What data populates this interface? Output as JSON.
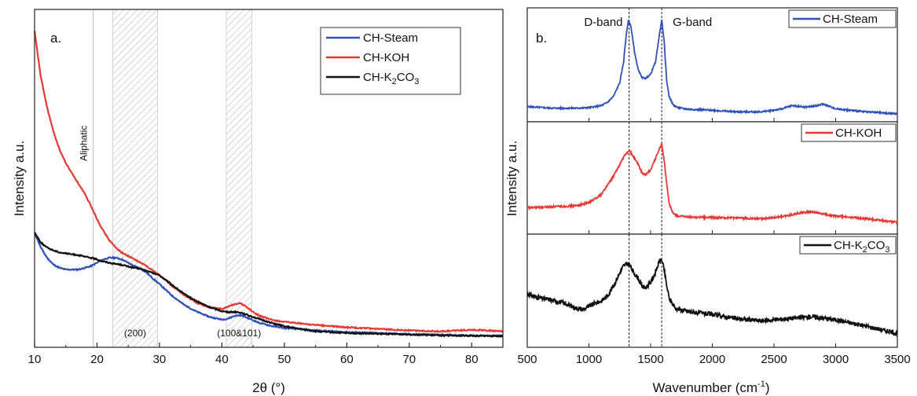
{
  "chart_data": [
    {
      "type": "line",
      "panel_label": "a.",
      "xlabel": "2θ (°)",
      "ylabel": "Intensity a.u.",
      "xlim": [
        10,
        85
      ],
      "x_ticks": [
        "10",
        "20",
        "30",
        "40",
        "50",
        "60",
        "70",
        "80"
      ],
      "x_tick_values": [
        10,
        20,
        30,
        40,
        50,
        60,
        70,
        80
      ],
      "ylim": [
        0,
        100
      ],
      "legend_position": "top-right",
      "annotations": [
        {
          "text": "Aliphatic",
          "x": 19.4,
          "kind": "line"
        },
        {
          "text": "(200)",
          "x_range": [
            22.5,
            29.7
          ],
          "kind": "hatched"
        },
        {
          "text": "(100&101)",
          "x_range": [
            40.7,
            44.8
          ],
          "kind": "hatched"
        }
      ],
      "series": [
        {
          "name": "CH-Steam",
          "color": "#3050b8",
          "x": [
            10,
            11,
            12,
            13,
            14,
            15,
            16,
            17,
            18,
            19,
            20,
            21,
            22,
            23,
            24,
            25,
            26,
            27,
            28,
            29,
            30,
            32,
            34,
            36,
            38,
            40,
            41,
            42,
            43,
            44,
            45,
            46,
            48,
            50,
            55,
            60,
            65,
            70,
            75,
            80,
            85
          ],
          "y": [
            34,
            29.5,
            26.5,
            24.5,
            23.5,
            23,
            23,
            23,
            23.5,
            24,
            25,
            26,
            26.5,
            26.5,
            26,
            25,
            24,
            23.3,
            22,
            20.3,
            18.7,
            15.3,
            12.5,
            10.5,
            9,
            8.2,
            8.5,
            9.3,
            9.5,
            8.8,
            8,
            7.2,
            6.3,
            5.7,
            5,
            4.5,
            4.2,
            3.9,
            3.7,
            3.5,
            3.4
          ]
        },
        {
          "name": "CH-KOH",
          "color": "#e53935",
          "x": [
            10,
            11,
            12,
            13,
            14,
            15,
            16,
            17,
            18,
            19,
            20,
            21,
            22,
            23,
            24,
            25,
            26,
            27,
            28,
            29,
            30,
            32,
            34,
            36,
            38,
            40,
            41,
            42,
            43,
            44,
            45,
            46,
            48,
            50,
            55,
            60,
            65,
            70,
            75,
            80,
            85
          ],
          "y": [
            93.5,
            80,
            71,
            64,
            58.5,
            54.5,
            51.5,
            48.5,
            45.5,
            42,
            38,
            34.5,
            31.6,
            29.5,
            28,
            27,
            26,
            25,
            24,
            22.6,
            21.4,
            18.2,
            15.4,
            13.1,
            11.8,
            11.3,
            12,
            12.8,
            13,
            11.9,
            10.4,
            9.3,
            8.1,
            7.5,
            6.6,
            5.9,
            5.4,
            5,
            4.7,
            5.2,
            4.7
          ]
        },
        {
          "name": "CH-K₂CO₃",
          "sub": "CH-K2CO3",
          "color": "#111111",
          "x": [
            10,
            11,
            12,
            13,
            14,
            15,
            16,
            17,
            18,
            19,
            20,
            21,
            22,
            23,
            24,
            25,
            26,
            27,
            28,
            29,
            30,
            32,
            34,
            36,
            38,
            40,
            41,
            42,
            43,
            44,
            45,
            46,
            48,
            50,
            55,
            60,
            65,
            70,
            75,
            80,
            85
          ],
          "y": [
            34,
            31,
            29.5,
            28.7,
            28.1,
            27.8,
            27.5,
            27.3,
            26.8,
            26.5,
            26,
            25.4,
            25,
            24.7,
            24.4,
            23.9,
            23.5,
            23.2,
            22.6,
            21.9,
            21.3,
            18.5,
            15.7,
            13.6,
            11.9,
            10.7,
            10.4,
            10.5,
            10.3,
            9.6,
            9,
            8.3,
            7.2,
            6.2,
            4.7,
            4.2,
            4,
            3.8,
            3.5,
            3.4,
            3.3
          ]
        }
      ]
    },
    {
      "type": "line",
      "panel_label": "b.",
      "xlabel": "Wavenumber (cm⁻¹)",
      "ylabel": "Intensity a.u.",
      "xlim": [
        500,
        3500
      ],
      "x_ticks": [
        "500",
        "1000",
        "1500",
        "2000",
        "2500",
        "3000",
        "3500"
      ],
      "x_tick_values": [
        500,
        1000,
        1500,
        2000,
        2500,
        3000,
        3500
      ],
      "band_labels": [
        {
          "text": "D-band",
          "x": 1325
        },
        {
          "text": "G-band",
          "x": 1590
        }
      ],
      "subplots": [
        {
          "name": "CH-Steam",
          "color": "#3050b8",
          "legend": "CH-Steam",
          "x": [
            500,
            700,
            900,
            1000,
            1100,
            1150,
            1200,
            1250,
            1280,
            1300,
            1320,
            1340,
            1370,
            1400,
            1430,
            1460,
            1500,
            1540,
            1570,
            1590,
            1610,
            1630,
            1650,
            1680,
            1720,
            1800,
            2000,
            2200,
            2400,
            2550,
            2650,
            2750,
            2850,
            2900,
            3000,
            3200,
            3500
          ],
          "y": [
            10,
            8.5,
            8.5,
            9,
            11,
            14,
            20,
            33,
            52,
            76,
            93,
            87,
            62,
            45,
            38,
            37,
            41,
            53,
            78,
            93,
            72,
            35,
            20,
            12,
            9,
            7.5,
            6.5,
            5,
            5,
            7.5,
            11,
            9.5,
            11,
            12.5,
            8,
            5.5,
            3
          ]
        },
        {
          "name": "CH-KOH",
          "color": "#e53935",
          "legend": "CH-KOH",
          "x": [
            500,
            700,
            900,
            1000,
            1100,
            1150,
            1200,
            1250,
            1280,
            1310,
            1330,
            1360,
            1400,
            1430,
            1460,
            1500,
            1540,
            1570,
            1590,
            1610,
            1630,
            1650,
            1680,
            1720,
            1800,
            2000,
            2200,
            2400,
            2600,
            2700,
            2800,
            2900,
            3000,
            3200,
            3500
          ],
          "y": [
            21,
            22,
            23,
            26,
            34,
            43,
            52,
            63,
            70,
            75,
            76,
            71,
            63,
            55,
            53,
            58,
            69,
            78,
            83,
            67,
            45,
            25,
            16,
            13,
            12,
            11.5,
            11,
            10.5,
            13,
            16,
            17,
            15,
            13,
            11,
            7
          ]
        },
        {
          "name": "CH-K₂CO₃",
          "sub": "CH-K2CO3",
          "color": "#111111",
          "legend": "CH-K₂CO₃",
          "x": [
            500,
            600,
            700,
            800,
            900,
            950,
            1000,
            1050,
            1100,
            1150,
            1200,
            1250,
            1280,
            1310,
            1330,
            1360,
            1400,
            1430,
            1460,
            1500,
            1540,
            1570,
            1590,
            1610,
            1630,
            1650,
            1700,
            1800,
            2000,
            2200,
            2400,
            2600,
            2800,
            3000,
            3200,
            3500
          ],
          "y": [
            47,
            43,
            41,
            38,
            33,
            32,
            35,
            38,
            40,
            45,
            55,
            67,
            74,
            76,
            75,
            68,
            62,
            54,
            53,
            58,
            68,
            78,
            80,
            70,
            55,
            43,
            33,
            30,
            27,
            23,
            21,
            23,
            25,
            22,
            17,
            9
          ]
        }
      ]
    }
  ]
}
